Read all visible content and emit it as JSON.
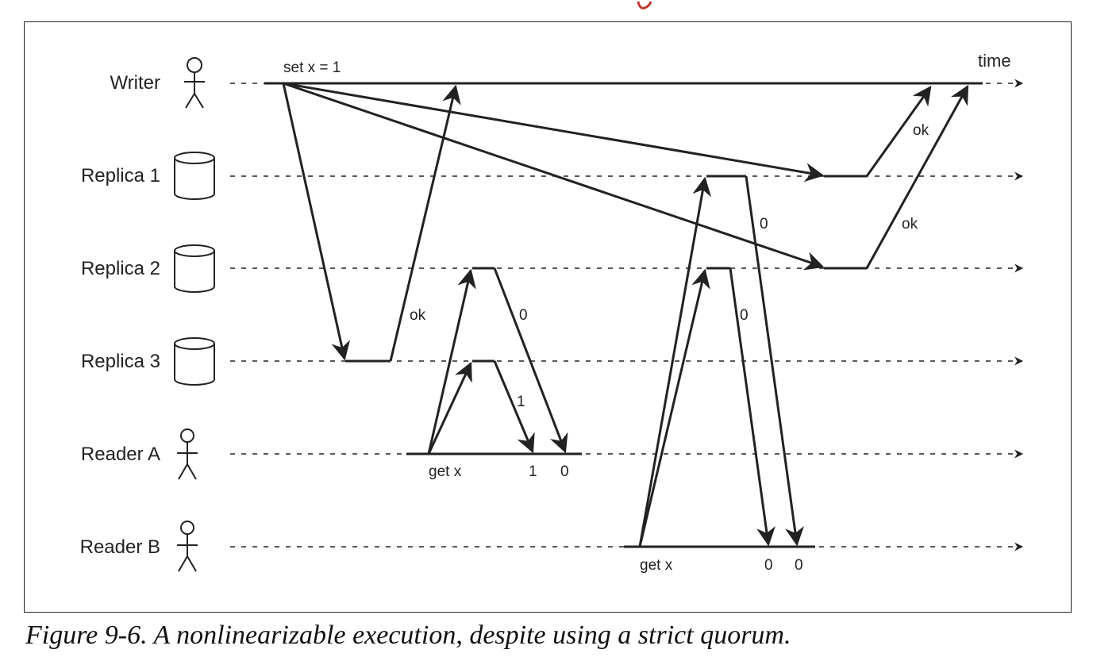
{
  "diagram": {
    "participants": [
      {
        "name": "Writer",
        "icon": "person-icon"
      },
      {
        "name": "Replica 1",
        "icon": "database-icon"
      },
      {
        "name": "Replica 2",
        "icon": "database-icon"
      },
      {
        "name": "Replica 3",
        "icon": "database-icon"
      },
      {
        "name": "Reader A",
        "icon": "person-icon"
      },
      {
        "name": "Reader B",
        "icon": "person-icon"
      }
    ],
    "time_label": "time",
    "writer_op": "set x = 1",
    "reader_a_op": "get x",
    "reader_b_op": "get x",
    "ack_replica3": "ok",
    "ack_replica1": "ok",
    "ack_replica2": "ok",
    "reader_a_resp_replica2": "0",
    "reader_a_resp_replica3": "1",
    "reader_a_result_1": "1",
    "reader_a_result_2": "0",
    "reader_b_resp_replica1": "0",
    "reader_b_resp_replica2": "0",
    "reader_b_result_1": "0",
    "reader_b_result_2": "0"
  },
  "caption": "Figure 9-6. A nonlinearizable execution, despite using a strict quorum.",
  "colors": {
    "line": "#222222",
    "caption_accent": "#c0392b"
  }
}
